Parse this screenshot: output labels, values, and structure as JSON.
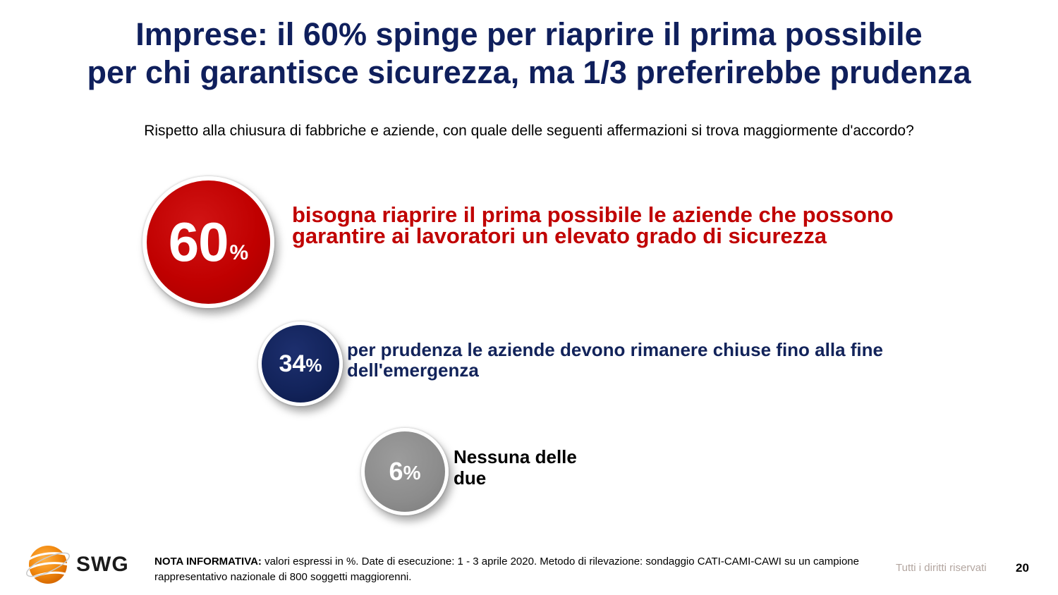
{
  "title": {
    "line1": "Imprese: il 60% spinge per riaprire il prima possibile",
    "line2": "per chi garantisce sicurezza, ma 1/3 preferirebbe prudenza"
  },
  "question": "Rispetto alla chiusura di fabbriche e aziende, con quale delle seguenti affermazioni si trova maggiormente d'accordo?",
  "chart_data": {
    "type": "bubble",
    "unit": "%",
    "items": [
      {
        "value": 60,
        "value_text": "60",
        "unit_text": "%",
        "label": "bisogna riaprire il prima possibile le aziende che possono garantire ai lavoratori un elevato grado di sicurezza",
        "color": "#c00000"
      },
      {
        "value": 34,
        "value_text": "34",
        "unit_text": "%",
        "label": "per prudenza le aziende devono rimanere chiuse fino alla fine dell'emergenza",
        "color": "#12235a"
      },
      {
        "value": 6,
        "value_text": "6",
        "unit_text": "%",
        "label": "Nessuna delle due",
        "color": "#8c8c8c"
      }
    ]
  },
  "footer": {
    "logo_text": "SWG",
    "note_label": "NOTA INFORMATIVA:",
    "note_text": "valori espressi in %. Date di esecuzione: 1 - 3 aprile 2020. Metodo di rilevazione: sondaggio CATI-CAMI-CAWI su un campione rappresentativo nazionale di 800 soggetti maggiorenni.",
    "rights": "Tutti i diritti riservati",
    "page_number": "20"
  }
}
